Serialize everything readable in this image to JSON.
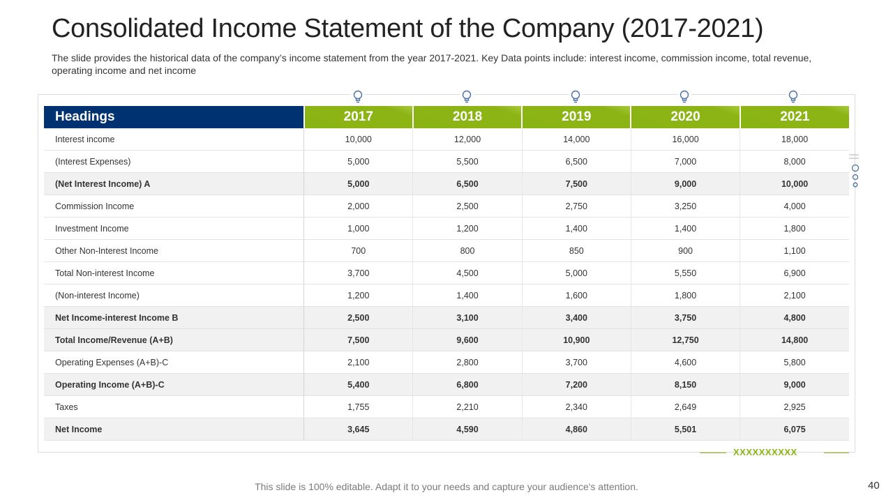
{
  "slide": {
    "title": "Consolidated Income Statement of the Company (2017-2021)",
    "subtitle": "The slide provides the historical data of the company’s income statement from the year 2017-2021. Key Data points include: interest income, commission income, total revenue, operating income and net income",
    "footer_note": "This slide is 100% editable. Adapt it to your needs and capture your audience's attention.",
    "page_number": "40",
    "footer_marks": "XXXXXXXXXX"
  },
  "colors": {
    "header_navy": "#003271",
    "header_green": "#8cb415",
    "bold_row_bg": "#f1f1f1"
  },
  "icons": [
    "lightbulb-icon"
  ],
  "table": {
    "header_label": "Headings",
    "years": [
      "2017",
      "2018",
      "2019",
      "2020",
      "2021"
    ],
    "rows": [
      {
        "label": "Interest income",
        "values": [
          "10,000",
          "12,000",
          "14,000",
          "16,000",
          "18,000"
        ],
        "bold": false
      },
      {
        "label": "(Interest Expenses)",
        "values": [
          "5,000",
          "5,500",
          "6,500",
          "7,000",
          "8,000"
        ],
        "bold": false
      },
      {
        "label": "(Net Interest Income) A",
        "values": [
          "5,000",
          "6,500",
          "7,500",
          "9,000",
          "10,000"
        ],
        "bold": true
      },
      {
        "label": "Commission Income",
        "values": [
          "2,000",
          "2,500",
          "2,750",
          "3,250",
          "4,000"
        ],
        "bold": false
      },
      {
        "label": "Investment  Income",
        "values": [
          "1,000",
          "1,200",
          "1,400",
          "1,400",
          "1,800"
        ],
        "bold": false
      },
      {
        "label": "Other Non-Interest Income",
        "values": [
          "700",
          "800",
          "850",
          "900",
          "1,100"
        ],
        "bold": false
      },
      {
        "label": "Total Non-interest Income",
        "values": [
          "3,700",
          "4,500",
          "5,000",
          "5,550",
          "6,900"
        ],
        "bold": false
      },
      {
        "label": "(Non-interest  Income)",
        "values": [
          "1,200",
          "1,400",
          "1,600",
          "1,800",
          "2,100"
        ],
        "bold": false
      },
      {
        "label": "Net Income-interest Income B",
        "values": [
          "2,500",
          "3,100",
          "3,400",
          "3,750",
          "4,800"
        ],
        "bold": true
      },
      {
        "label": "Total Income/Revenue (A+B)",
        "values": [
          "7,500",
          "9,600",
          "10,900",
          "12,750",
          "14,800"
        ],
        "bold": true
      },
      {
        "label": "Operating Expenses (A+B)-C",
        "values": [
          "2,100",
          "2,800",
          "3,700",
          "4,600",
          "5,800"
        ],
        "bold": false
      },
      {
        "label": "Operating Income (A+B)-C",
        "values": [
          "5,400",
          "6,800",
          "7,200",
          "8,150",
          "9,000"
        ],
        "bold": true
      },
      {
        "label": "Taxes",
        "values": [
          "1,755",
          "2,210",
          "2,340",
          "2,649",
          "2,925"
        ],
        "bold": false
      },
      {
        "label": "Net Income",
        "values": [
          "3,645",
          "4,590",
          "4,860",
          "5,501",
          "6,075"
        ],
        "bold": true
      }
    ]
  }
}
